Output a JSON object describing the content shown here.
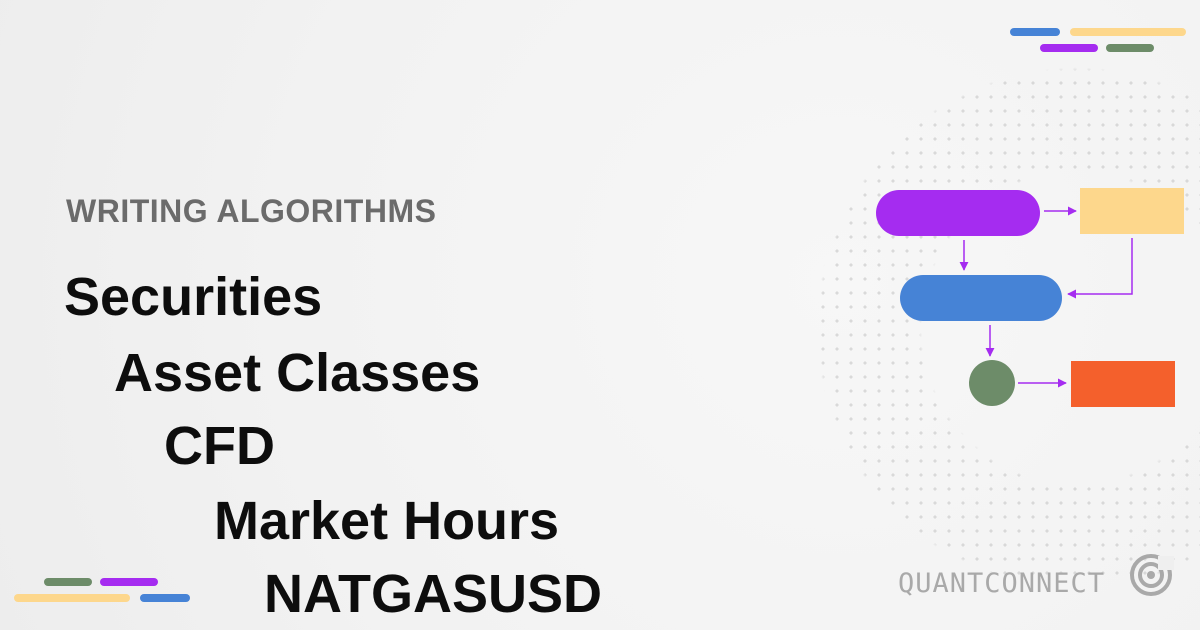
{
  "header": {
    "category": "WRITING ALGORITHMS"
  },
  "breadcrumb": [
    "Securities",
    "Asset Classes",
    "CFD",
    "Market Hours",
    "NATGASUSD"
  ],
  "brand": {
    "name": "QUANTCONNECT",
    "icon": "quantconnect-logo-icon"
  },
  "colors": {
    "purple": "#a52cf0",
    "yellow": "#fdd78c",
    "blue": "#4683d6",
    "green": "#6d8c69",
    "orange": "#f4602c",
    "text": "#0d0d0d",
    "muted": "#6b6b6b"
  }
}
